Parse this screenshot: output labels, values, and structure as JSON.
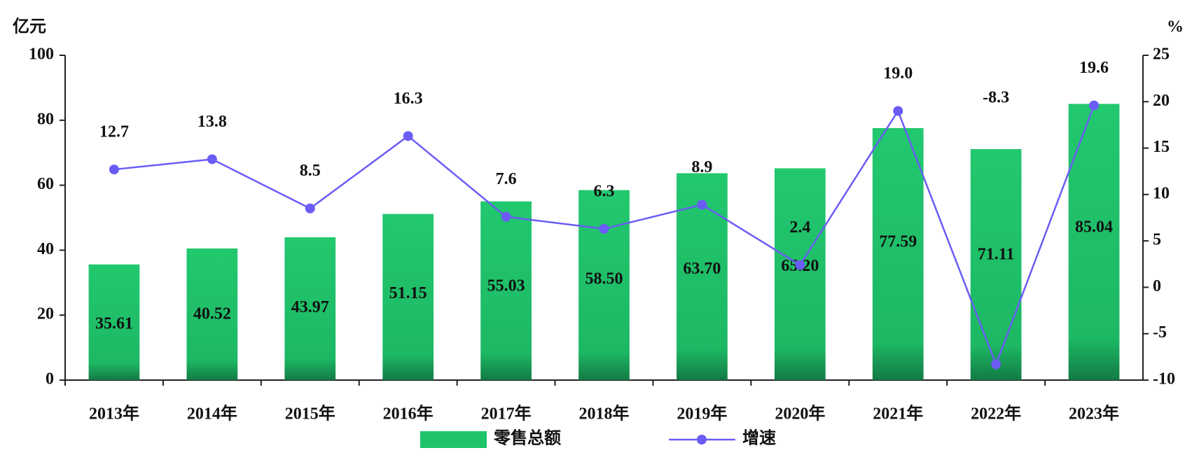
{
  "chart_data": {
    "type": "bar-line",
    "y_unit": "亿元",
    "y2_unit": "%",
    "categories": [
      "2013年",
      "2014年",
      "2015年",
      "2016年",
      "2017年",
      "2018年",
      "2019年",
      "2020年",
      "2021年",
      "2022年",
      "2023年"
    ],
    "series": [
      {
        "name": "零售总额",
        "type": "bar",
        "color": "#1fc46a",
        "values": [
          35.61,
          40.52,
          43.97,
          51.15,
          55.03,
          58.5,
          63.7,
          65.2,
          77.59,
          71.11,
          85.04
        ],
        "value_labels": [
          "35.61",
          "40.52",
          "43.97",
          "51.15",
          "55.03",
          "58.50",
          "63.70",
          "65.20",
          "77.59",
          "71.11",
          "85.04"
        ]
      },
      {
        "name": "增速",
        "type": "line",
        "axis": "y2",
        "color": "#6a5cf5",
        "values": [
          12.7,
          13.8,
          8.5,
          16.3,
          7.6,
          6.3,
          8.9,
          2.4,
          19.0,
          -8.3,
          19.6
        ],
        "value_labels": [
          "12.7",
          "13.8",
          "8.5",
          "16.3",
          "7.6",
          "6.3",
          "8.9",
          "2.4",
          "19.0",
          "-8.3",
          "19.6"
        ]
      }
    ],
    "ylim": [
      0,
      100
    ],
    "yticks": [
      0,
      20,
      40,
      60,
      80,
      100
    ],
    "y2lim": [
      -10,
      25
    ],
    "y2ticks": [
      -10,
      -5,
      0,
      5,
      10,
      15,
      20,
      25
    ]
  }
}
